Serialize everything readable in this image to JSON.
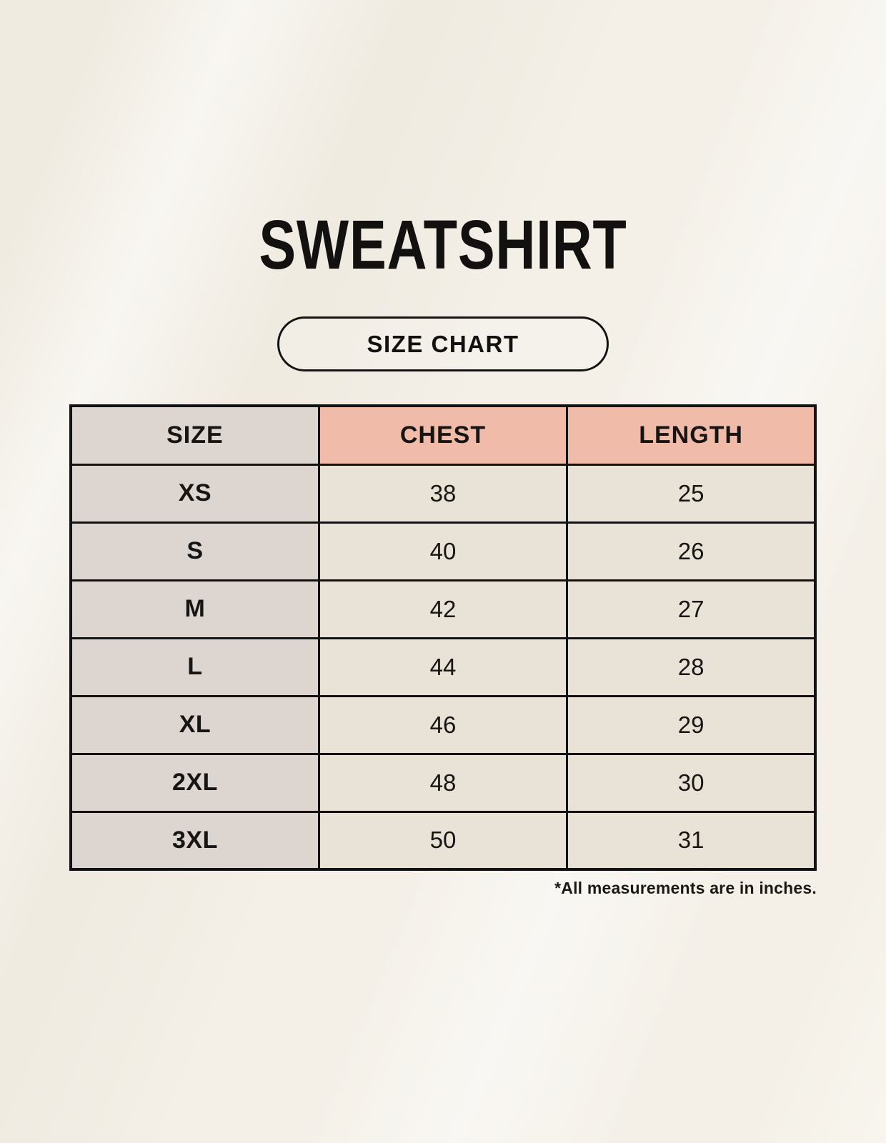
{
  "page": {
    "title": "SWEATSHIRT",
    "size_chart_badge": "SIZE CHART",
    "footnote": "*All measurements are in inches."
  },
  "table": {
    "columns": [
      "SIZE",
      "CHEST",
      "LENGTH"
    ],
    "rows": [
      {
        "size": "XS",
        "chest": "38",
        "length": "25"
      },
      {
        "size": "S",
        "chest": "40",
        "length": "26"
      },
      {
        "size": "M",
        "chest": "42",
        "length": "27"
      },
      {
        "size": "L",
        "chest": "44",
        "length": "28"
      },
      {
        "size": "XL",
        "chest": "46",
        "length": "29"
      },
      {
        "size": "2XL",
        "chest": "48",
        "length": "30"
      },
      {
        "size": "3XL",
        "chest": "50",
        "length": "31"
      }
    ]
  },
  "colors": {
    "background": "#F8F5EE",
    "size_column_bg": "#DCD5D0",
    "measure_header_bg": "#F0BCA9",
    "data_cell_bg": "#E9E2D7",
    "border": "#121212",
    "text": "#171513"
  },
  "chart_data": {
    "type": "table",
    "title": "SWEATSHIRT",
    "columns": [
      "SIZE",
      "CHEST",
      "LENGTH"
    ],
    "rows": [
      [
        "XS",
        38,
        25
      ],
      [
        "S",
        40,
        26
      ],
      [
        "M",
        42,
        27
      ],
      [
        "L",
        44,
        28
      ],
      [
        "XL",
        46,
        29
      ],
      [
        "2XL",
        48,
        30
      ],
      [
        "3XL",
        50,
        31
      ]
    ],
    "units_note": "*All measurements are in inches."
  }
}
